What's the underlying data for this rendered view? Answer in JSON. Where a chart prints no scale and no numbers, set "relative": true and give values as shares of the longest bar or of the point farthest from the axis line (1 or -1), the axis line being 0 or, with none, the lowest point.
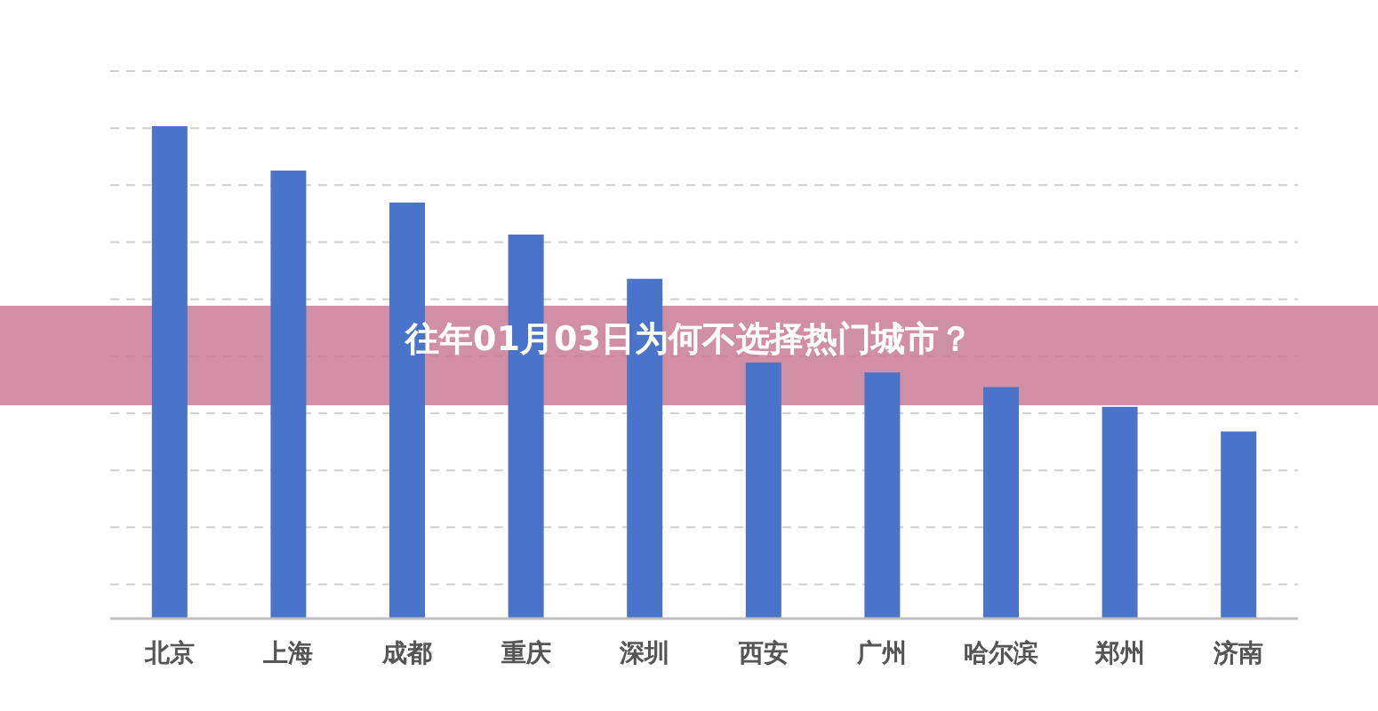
{
  "chart_data": {
    "type": "bar",
    "title": "往年01月03日为何不选择热门城市？",
    "relative": true,
    "grid": "y",
    "categories": [
      "北京",
      "上海",
      "成都",
      "重庆",
      "深圳",
      "西安",
      "广州",
      "哈尔滨",
      "郑州",
      "济南"
    ],
    "values": [
      1,
      0.91,
      0.845,
      0.78,
      0.69,
      0.52,
      0.5,
      0.47,
      0.43,
      0.38
    ],
    "color": "#4a74c9"
  }
}
